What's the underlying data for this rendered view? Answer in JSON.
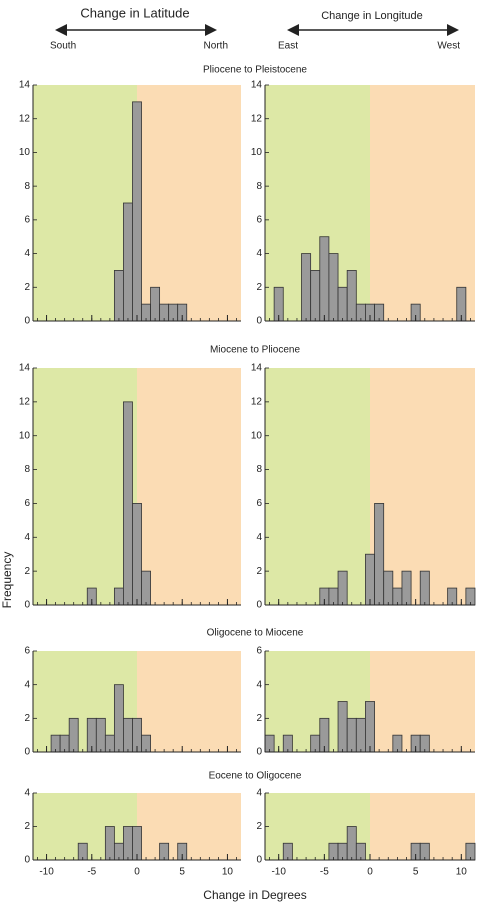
{
  "header": {
    "latitude": {
      "title": "Change in Latitude",
      "left": "South",
      "right": "North"
    },
    "longitude": {
      "title": "Change in Longitude",
      "left": "East",
      "right": "West"
    }
  },
  "y_label": "Frequency",
  "x_label": "Change in Degrees",
  "chart_data": [
    {
      "type": "histogram",
      "title": "Pliocene to Pleistocene",
      "bins": [
        -11.5,
        -10.5,
        -9.5,
        -8.5,
        -7.5,
        -6.5,
        -5.5,
        -4.5,
        -3.5,
        -2.5,
        -1.5,
        -0.5,
        0.5,
        1.5,
        2.5,
        3.5,
        4.5,
        5.5,
        6.5,
        7.5,
        8.5,
        9.5,
        10.5,
        11.5
      ],
      "values": [
        0,
        0,
        0,
        0,
        0,
        0,
        0,
        0,
        0,
        3,
        7,
        13,
        1,
        2,
        1,
        1,
        1,
        0,
        0,
        0,
        0,
        0,
        0
      ],
      "color": "#9a9a9a",
      "left_color": "#dde8a6",
      "right_color": "#fbdcb4",
      "xlim": [
        -11.5,
        11.5
      ],
      "xticks": [
        -10,
        -5,
        0,
        5,
        10
      ],
      "ylim": [
        0,
        14
      ],
      "yticks": [
        0,
        2,
        4,
        6,
        8,
        10,
        12,
        14
      ]
    },
    {
      "type": "histogram",
      "bins": [
        -11.5,
        -10.5,
        -9.5,
        -8.5,
        -7.5,
        -6.5,
        -5.5,
        -4.5,
        -3.5,
        -2.5,
        -1.5,
        -0.5,
        0.5,
        1.5,
        2.5,
        3.5,
        4.5,
        5.5,
        6.5,
        7.5,
        8.5,
        9.5,
        10.5,
        11.5
      ],
      "values": [
        0,
        2,
        0,
        0,
        4,
        3,
        5,
        4,
        2,
        3,
        1,
        1,
        1,
        0,
        0,
        0,
        1,
        0,
        0,
        0,
        0,
        2,
        0
      ],
      "color": "#9a9a9a",
      "left_color": "#dde8a6",
      "right_color": "#fbdcb4",
      "xlim": [
        -11.5,
        11.5
      ],
      "xticks": [
        -10,
        -5,
        0,
        5,
        10
      ],
      "ylim": [
        0,
        14
      ],
      "yticks": [
        0,
        2,
        4,
        6,
        8,
        10,
        12,
        14
      ]
    },
    {
      "type": "histogram",
      "title": "Miocene to Pliocene",
      "bins": [
        -11.5,
        -10.5,
        -9.5,
        -8.5,
        -7.5,
        -6.5,
        -5.5,
        -4.5,
        -3.5,
        -2.5,
        -1.5,
        -0.5,
        0.5,
        1.5,
        2.5,
        3.5,
        4.5,
        5.5,
        6.5,
        7.5,
        8.5,
        9.5,
        10.5,
        11.5
      ],
      "values": [
        0,
        0,
        0,
        0,
        0,
        0,
        1,
        0,
        0,
        1,
        12,
        6,
        2,
        0,
        0,
        0,
        0,
        0,
        0,
        0,
        0,
        0,
        0
      ],
      "color": "#9a9a9a",
      "left_color": "#dde8a6",
      "right_color": "#fbdcb4",
      "xlim": [
        -11.5,
        11.5
      ],
      "xticks": [
        -10,
        -5,
        0,
        5,
        10
      ],
      "ylim": [
        0,
        14
      ],
      "yticks": [
        0,
        2,
        4,
        6,
        8,
        10,
        12,
        14
      ]
    },
    {
      "type": "histogram",
      "bins": [
        -11.5,
        -10.5,
        -9.5,
        -8.5,
        -7.5,
        -6.5,
        -5.5,
        -4.5,
        -3.5,
        -2.5,
        -1.5,
        -0.5,
        0.5,
        1.5,
        2.5,
        3.5,
        4.5,
        5.5,
        6.5,
        7.5,
        8.5,
        9.5,
        10.5,
        11.5
      ],
      "values": [
        0,
        0,
        0,
        0,
        0,
        0,
        1,
        1,
        2,
        0,
        0,
        3,
        6,
        2,
        1,
        2,
        0,
        2,
        0,
        0,
        1,
        0,
        1
      ],
      "color": "#9a9a9a",
      "left_color": "#dde8a6",
      "right_color": "#fbdcb4",
      "xlim": [
        -11.5,
        11.5
      ],
      "xticks": [
        -10,
        -5,
        0,
        5,
        10
      ],
      "ylim": [
        0,
        14
      ],
      "yticks": [
        0,
        2,
        4,
        6,
        8,
        10,
        12,
        14
      ]
    },
    {
      "type": "histogram",
      "title": "Oligocene to Miocene",
      "bins": [
        -11.5,
        -10.5,
        -9.5,
        -8.5,
        -7.5,
        -6.5,
        -5.5,
        -4.5,
        -3.5,
        -2.5,
        -1.5,
        -0.5,
        0.5,
        1.5,
        2.5,
        3.5,
        4.5,
        5.5,
        6.5,
        7.5,
        8.5,
        9.5,
        10.5,
        11.5
      ],
      "values": [
        0,
        0,
        1,
        1,
        2,
        0,
        2,
        2,
        1,
        4,
        2,
        2,
        1,
        0,
        0,
        0,
        0,
        0,
        0,
        0,
        0,
        0,
        0
      ],
      "color": "#9a9a9a",
      "left_color": "#dde8a6",
      "right_color": "#fbdcb4",
      "xlim": [
        -11.5,
        11.5
      ],
      "xticks": [
        -10,
        -5,
        0,
        5,
        10
      ],
      "ylim": [
        0,
        6
      ],
      "yticks": [
        0,
        2,
        4,
        6
      ]
    },
    {
      "type": "histogram",
      "bins": [
        -11.5,
        -10.5,
        -9.5,
        -8.5,
        -7.5,
        -6.5,
        -5.5,
        -4.5,
        -3.5,
        -2.5,
        -1.5,
        -0.5,
        0.5,
        1.5,
        2.5,
        3.5,
        4.5,
        5.5,
        6.5,
        7.5,
        8.5,
        9.5,
        10.5,
        11.5
      ],
      "values": [
        1,
        0,
        1,
        0,
        0,
        1,
        2,
        0,
        3,
        2,
        2,
        3,
        0,
        0,
        1,
        0,
        1,
        1,
        0,
        0,
        0,
        0,
        0
      ],
      "color": "#9a9a9a",
      "left_color": "#dde8a6",
      "right_color": "#fbdcb4",
      "xlim": [
        -11.5,
        11.5
      ],
      "xticks": [
        -10,
        -5,
        0,
        5,
        10
      ],
      "ylim": [
        0,
        6
      ],
      "yticks": [
        0,
        2,
        4,
        6
      ]
    },
    {
      "type": "histogram",
      "title": "Eocene to Oligocene",
      "bins": [
        -11.5,
        -10.5,
        -9.5,
        -8.5,
        -7.5,
        -6.5,
        -5.5,
        -4.5,
        -3.5,
        -2.5,
        -1.5,
        -0.5,
        0.5,
        1.5,
        2.5,
        3.5,
        4.5,
        5.5,
        6.5,
        7.5,
        8.5,
        9.5,
        10.5,
        11.5
      ],
      "values": [
        0,
        0,
        0,
        0,
        0,
        1,
        0,
        0,
        2,
        1,
        2,
        2,
        0,
        0,
        1,
        0,
        1,
        0,
        0,
        0,
        0,
        0,
        0
      ],
      "color": "#9a9a9a",
      "left_color": "#dde8a6",
      "right_color": "#fbdcb4",
      "xlim": [
        -11.5,
        11.5
      ],
      "xticks": [
        -10,
        -5,
        0,
        5,
        10
      ],
      "ylim": [
        0,
        4
      ],
      "yticks": [
        0,
        2,
        4
      ]
    },
    {
      "type": "histogram",
      "bins": [
        -11.5,
        -10.5,
        -9.5,
        -8.5,
        -7.5,
        -6.5,
        -5.5,
        -4.5,
        -3.5,
        -2.5,
        -1.5,
        -0.5,
        0.5,
        1.5,
        2.5,
        3.5,
        4.5,
        5.5,
        6.5,
        7.5,
        8.5,
        9.5,
        10.5,
        11.5
      ],
      "values": [
        0,
        0,
        1,
        0,
        0,
        0,
        0,
        1,
        1,
        2,
        1,
        0,
        0,
        0,
        0,
        0,
        1,
        1,
        0,
        0,
        0,
        0,
        1
      ],
      "color": "#9a9a9a",
      "left_color": "#dde8a6",
      "right_color": "#fbdcb4",
      "xlim": [
        -11.5,
        11.5
      ],
      "xticks": [
        -10,
        -5,
        0,
        5,
        10
      ],
      "ylim": [
        0,
        4
      ],
      "yticks": [
        0,
        2,
        4
      ]
    }
  ]
}
